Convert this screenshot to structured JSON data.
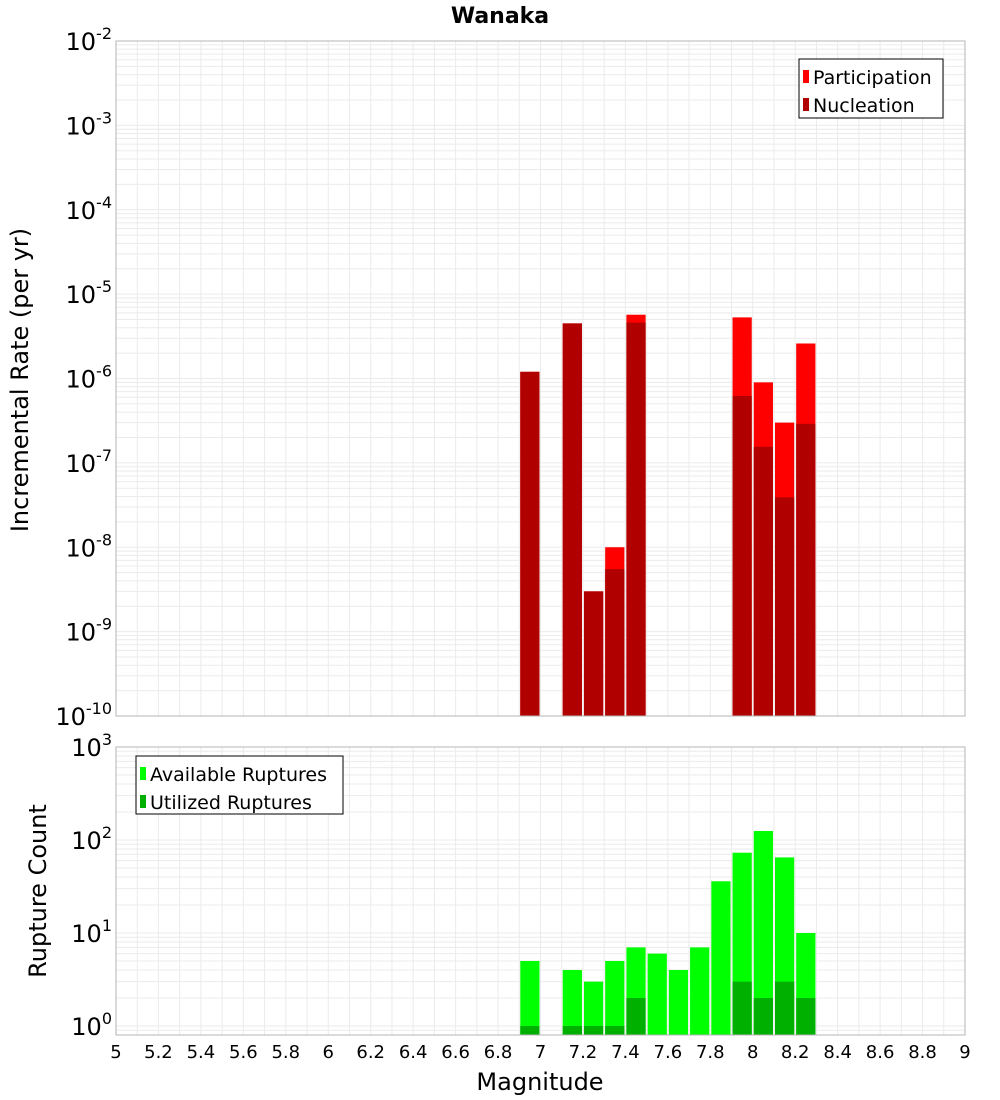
{
  "title": "Wanaka",
  "xlabel": "Magnitude",
  "x_tick_labels": [
    "5",
    "5.2",
    "5.4",
    "5.6",
    "5.8",
    "6",
    "6.2",
    "6.4",
    "6.6",
    "6.8",
    "7",
    "7.2",
    "7.4",
    "7.6",
    "7.8",
    "8",
    "8.2",
    "8.4",
    "8.6",
    "8.8",
    "9"
  ],
  "colors": {
    "participation": "#ff0000",
    "nucleation": "#b00000",
    "available": "#00ff00",
    "utilized": "#00b000",
    "grid": "#ebebeb",
    "frame": "#b4b4b4"
  },
  "chart_data": [
    {
      "type": "bar",
      "panel": "top",
      "title": "Wanaka",
      "xlabel": "",
      "ylabel": "Incremental Rate (per yr)",
      "yscale": "log",
      "xlim": [
        5,
        9
      ],
      "ylim": [
        1e-10,
        0.01
      ],
      "y_tick_exponents": [
        "-2",
        "-3",
        "-4",
        "-5",
        "-6",
        "-7",
        "-8",
        "-9",
        "-10"
      ],
      "bar_width": 0.1,
      "grid": true,
      "legend_position": "top-right",
      "series": [
        {
          "name": "Participation",
          "color": "#ff0000",
          "x": [
            6.95,
            7.15,
            7.25,
            7.35,
            7.45,
            7.95,
            8.05,
            8.15,
            8.25
          ],
          "values": [
            1.2e-06,
            4.5e-06,
            3e-09,
            1e-08,
            5.7e-06,
            5.3e-06,
            9e-07,
            3e-07,
            2.6e-06
          ]
        },
        {
          "name": "Nucleation",
          "color": "#b00000",
          "x": [
            6.95,
            7.15,
            7.25,
            7.35,
            7.45,
            7.95,
            8.05,
            8.15,
            8.25
          ],
          "values": [
            1.2e-06,
            4.5e-06,
            3e-09,
            5.5e-09,
            4.6e-06,
            6.2e-07,
            1.55e-07,
            3.9e-08,
            2.9e-07
          ]
        }
      ]
    },
    {
      "type": "bar",
      "panel": "bottom",
      "xlabel": "Magnitude",
      "ylabel": "Rupture Count",
      "yscale": "log",
      "xlim": [
        5,
        9
      ],
      "ylim": [
        0.8,
        1000
      ],
      "y_tick_exponents": [
        "3",
        "2",
        "1",
        "0"
      ],
      "bar_width": 0.1,
      "grid": true,
      "legend_position": "top-left",
      "series": [
        {
          "name": "Available Ruptures",
          "color": "#00ff00",
          "x": [
            6.95,
            7.15,
            7.25,
            7.35,
            7.45,
            7.55,
            7.65,
            7.75,
            7.85,
            7.95,
            8.05,
            8.15,
            8.25
          ],
          "values": [
            5,
            4,
            3,
            5,
            7,
            6,
            4,
            7,
            36,
            73,
            125,
            65,
            10
          ]
        },
        {
          "name": "Utilized Ruptures",
          "color": "#00b000",
          "x": [
            6.95,
            7.15,
            7.25,
            7.35,
            7.45,
            7.55,
            7.65,
            7.75,
            7.85,
            7.95,
            8.05,
            8.15,
            8.25
          ],
          "values": [
            1,
            1,
            1,
            1,
            2,
            0,
            0,
            0,
            0,
            3,
            2,
            3,
            2
          ]
        }
      ]
    }
  ]
}
